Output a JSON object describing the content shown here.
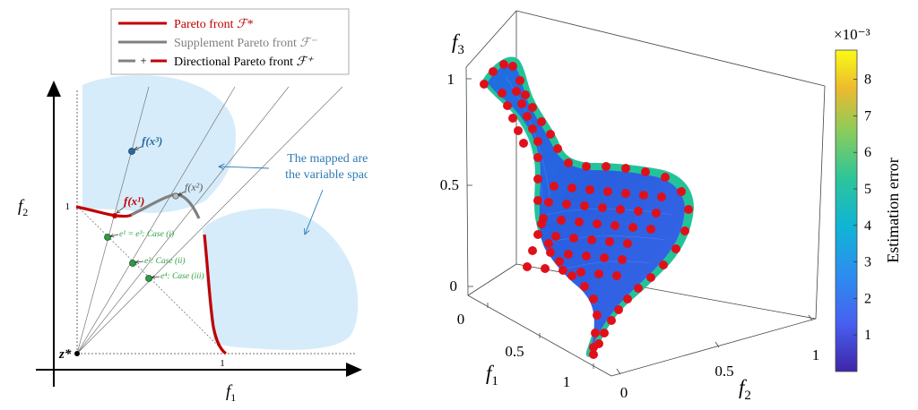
{
  "left": {
    "legend": [
      {
        "label": "Pareto front",
        "symbol": "ℱ*",
        "color": "#c00000"
      },
      {
        "label": "Supplement Pareto front",
        "symbol": "ℱ⁻",
        "color": "#808080"
      },
      {
        "label": "Directional Pareto front",
        "symbol": "ℱ⁺",
        "color": "#c00000",
        "joiner": "+"
      }
    ],
    "axes": {
      "xlabel": "f",
      "xlabel_sub": "1",
      "ylabel": "f",
      "ylabel_sub": "2"
    },
    "ticks": {
      "x_one": "1",
      "y_one": "1"
    },
    "origin_label": "z*",
    "point_labels": {
      "fx3": "f(x³)",
      "fx2": "f(x²)",
      "fx1": "f(x¹)",
      "e1": "e¹ = e³: Case (i)",
      "e2": "e²: Case (ii)",
      "e4": "e⁴: Case (iii)"
    },
    "annotation": {
      "line1": "The mapped area of",
      "line2": "the variable space 𝒳"
    },
    "colors": {
      "region": "#d6ecfa",
      "pareto": "#c00000",
      "supplement": "#808080",
      "point_green": "#2e9b40",
      "point_blue": "#2b6a9a",
      "annotation": "#2e7bb5"
    }
  },
  "right": {
    "axes": {
      "f3": "f",
      "f3_sub": "3",
      "f1": "f",
      "f1_sub": "1",
      "f2": "f",
      "f2_sub": "2"
    },
    "z_ticks": [
      "1",
      "0.5",
      "0"
    ],
    "f1_ticks": [
      "0",
      "0.5",
      "1"
    ],
    "f2_ticks": [
      "0",
      "0.5",
      "1"
    ],
    "colorbar": {
      "exponent": "×10⁻³",
      "label": "Estimation error",
      "ticks": [
        "8",
        "7",
        "6",
        "5",
        "4",
        "3",
        "2",
        "1"
      ],
      "range": [
        0,
        8.8
      ]
    }
  }
}
